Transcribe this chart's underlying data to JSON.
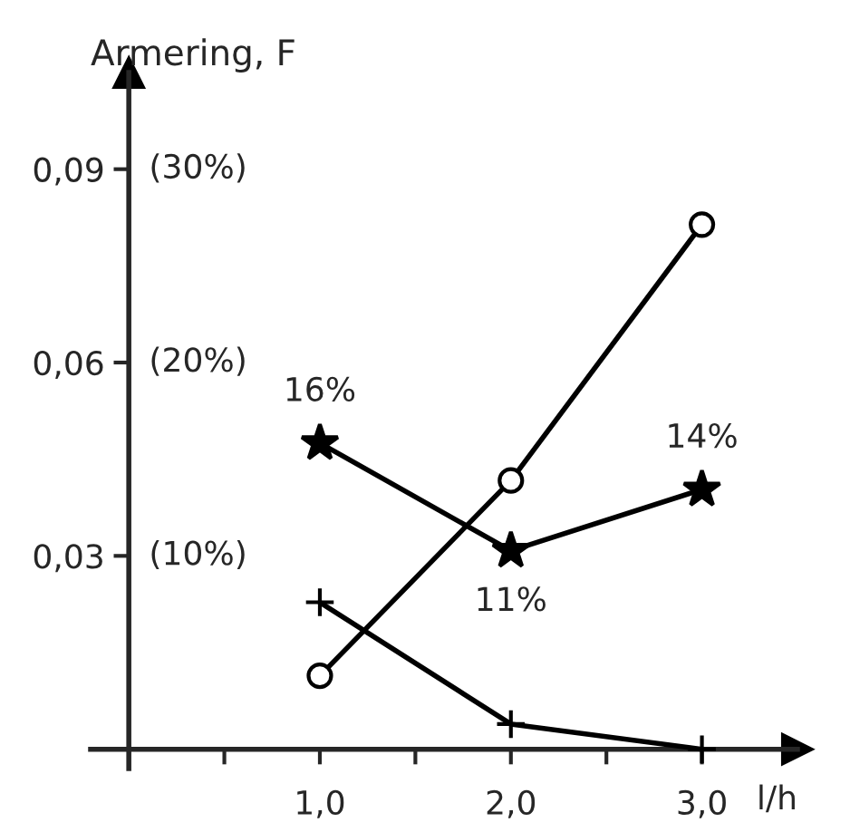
{
  "chart_data": {
    "type": "line",
    "xlabel": "l/h",
    "ylabel": "Armering, F",
    "x": [
      1.0,
      2.0,
      3.0
    ],
    "series": [
      {
        "color": "#000000",
        "marker": "circle",
        "values": [
          0.0114,
          0.0417,
          0.0814
        ]
      },
      {
        "color": "#000000",
        "marker": "star",
        "values": [
          0.0475,
          0.0308,
          0.0403
        ]
      },
      {
        "color": "#000000",
        "marker": "cross",
        "values": [
          0.0228,
          0.0039,
          0.0
        ]
      }
    ],
    "xlim": [
      -0.2,
      3.5
    ],
    "ylim": [
      -0.003,
      0.105
    ],
    "xticks": [
      {
        "value": 0.5,
        "label": null
      },
      {
        "value": 1.0,
        "label": "1,0"
      },
      {
        "value": 1.5,
        "label": null
      },
      {
        "value": 2.0,
        "label": "2,0"
      },
      {
        "value": 2.5,
        "label": null
      },
      {
        "value": 3.0,
        "label": "3,0"
      }
    ],
    "yticks": [
      {
        "value": 0.03,
        "label": "0,03"
      },
      {
        "value": 0.06,
        "label": "0,06"
      },
      {
        "value": 0.09,
        "label": "0,09"
      }
    ],
    "annotations": [
      "(10%)",
      "(20%)",
      "(30%)",
      {
        "text": "16%",
        "x": 1.0,
        "y": 0.0475
      },
      {
        "text": "11%",
        "x": 2.0,
        "y": 0.0308
      },
      {
        "text": "14%",
        "x": 3.0,
        "y": 0.0403
      }
    ],
    "grid": false,
    "legend": false
  }
}
